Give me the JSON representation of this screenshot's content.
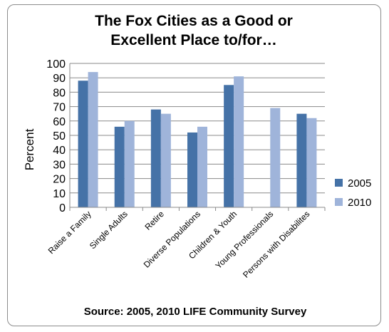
{
  "chart_data": {
    "type": "bar",
    "title_lines": [
      "The Fox Cities as a Good or",
      "Excellent Place to/for…"
    ],
    "ylabel": "Percent",
    "xlabel": "",
    "source": "Source: 2005, 2010 LIFE Community Survey",
    "ylim": [
      0,
      100
    ],
    "yticks": [
      "0",
      "10",
      "20",
      "30",
      "40",
      "50",
      "60",
      "70",
      "80",
      "90",
      "100"
    ],
    "grid": true,
    "legend_position": "right",
    "categories": [
      "Raise a Family",
      "Single Adults",
      "Retire",
      "Diverse Populations",
      "Children & Youth",
      "Young Professionals",
      "Persons with Disabilites"
    ],
    "series": [
      {
        "name": "2005",
        "color": "#4572a7",
        "values": [
          88,
          56,
          68,
          52,
          85,
          null,
          65
        ]
      },
      {
        "name": "2010",
        "color": "#9fb4da",
        "values": [
          94,
          60,
          65,
          56,
          91,
          69,
          62
        ]
      }
    ]
  }
}
